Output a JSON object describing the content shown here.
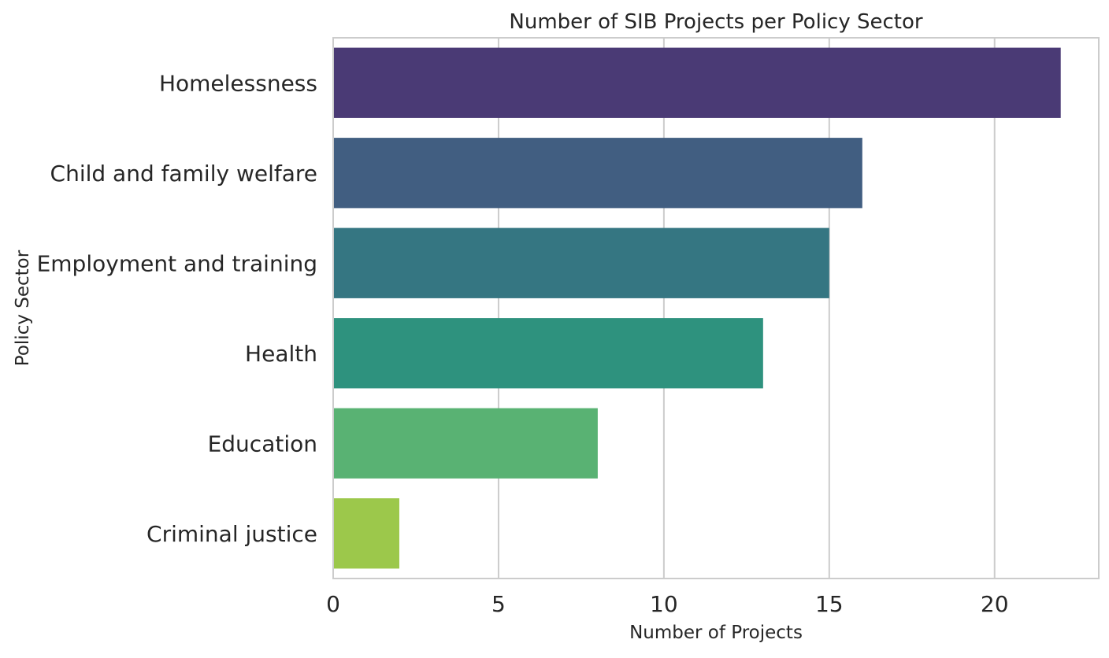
{
  "chart_data": {
    "type": "bar",
    "orientation": "horizontal",
    "title": "Number of SIB Projects per Policy Sector",
    "xlabel": "Number of Projects",
    "ylabel": "Policy Sector",
    "categories": [
      "Homelessness",
      "Child and family welfare",
      "Employment and training",
      "Health",
      "Education",
      "Criminal justice"
    ],
    "values": [
      22,
      16,
      15,
      13,
      8,
      2
    ],
    "colors": [
      "#4a3a75",
      "#415e81",
      "#357682",
      "#2e927e",
      "#59b273",
      "#9cc84b"
    ],
    "xlim": [
      0,
      23.15
    ],
    "x_ticks": [
      0,
      5,
      10,
      15,
      20
    ],
    "x_tick_labels": [
      "0",
      "5",
      "10",
      "15",
      "20"
    ],
    "grid": "vertical",
    "legend": "none"
  }
}
